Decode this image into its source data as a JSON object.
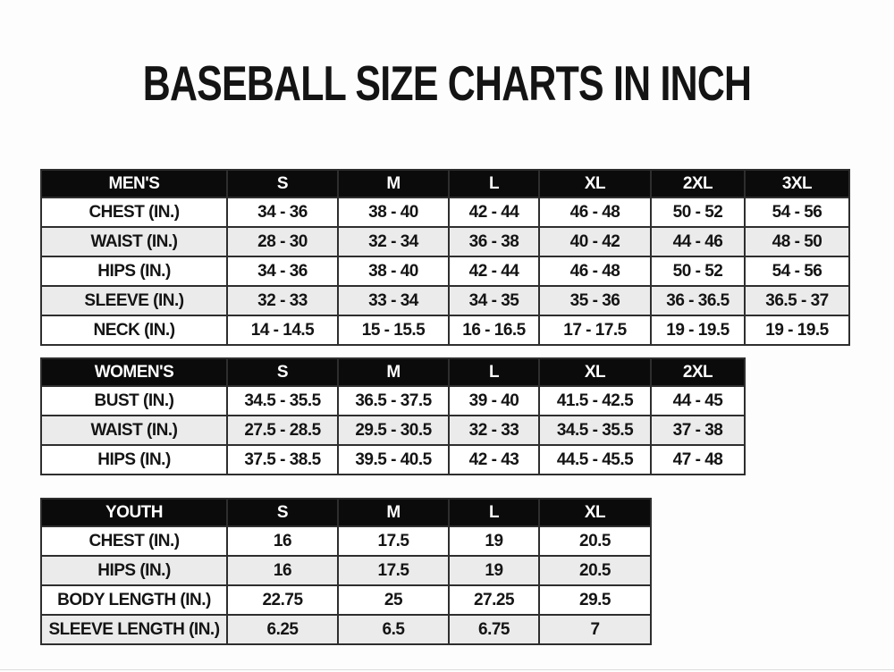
{
  "page": {
    "title": "BASEBALL SIZE CHARTS IN INCH"
  },
  "colors": {
    "page_bg": "#fdfdfd",
    "header_bg": "#0b0b0b",
    "header_text": "#ffffff",
    "row_alt": "#ebebeb",
    "border": "#2e2e2e",
    "text": "#141414"
  },
  "tables": [
    {
      "name": "mens",
      "header": [
        "MEN'S",
        "S",
        "M",
        "L",
        "XL",
        "2XL",
        "3XL"
      ],
      "rows": [
        {
          "label": "CHEST (IN.)",
          "values": [
            "34 - 36",
            "38 - 40",
            "42 - 44",
            "46 - 48",
            "50 - 52",
            "54 - 56"
          ]
        },
        {
          "label": "WAIST (IN.)",
          "values": [
            "28 - 30",
            "32 - 34",
            "36 - 38",
            "40 - 42",
            "44 - 46",
            "48 - 50"
          ]
        },
        {
          "label": "HIPS (IN.)",
          "values": [
            "34 - 36",
            "38 - 40",
            "42 - 44",
            "46 - 48",
            "50 - 52",
            "54 - 56"
          ]
        },
        {
          "label": "SLEEVE (IN.)",
          "values": [
            "32 - 33",
            "33 - 34",
            "34 - 35",
            "35 - 36",
            "36 - 36.5",
            "36.5 - 37"
          ]
        },
        {
          "label": "NECK (IN.)",
          "values": [
            "14 - 14.5",
            "15 - 15.5",
            "16 - 16.5",
            "17 - 17.5",
            "19 - 19.5",
            "19 - 19.5"
          ]
        }
      ]
    },
    {
      "name": "womens",
      "header": [
        "WOMEN'S",
        "S",
        "M",
        "L",
        "XL",
        "2XL"
      ],
      "rows": [
        {
          "label": "BUST (IN.)",
          "values": [
            "34.5 - 35.5",
            "36.5 - 37.5",
            "39 - 40",
            "41.5 - 42.5",
            "44 - 45"
          ]
        },
        {
          "label": "WAIST (IN.)",
          "values": [
            "27.5 - 28.5",
            "29.5 - 30.5",
            "32 - 33",
            "34.5 - 35.5",
            "37 - 38"
          ]
        },
        {
          "label": "HIPS (IN.)",
          "values": [
            "37.5 - 38.5",
            "39.5 - 40.5",
            "42 - 43",
            "44.5 - 45.5",
            "47 - 48"
          ]
        }
      ]
    },
    {
      "name": "youth",
      "header": [
        "YOUTH",
        "S",
        "M",
        "L",
        "XL"
      ],
      "rows": [
        {
          "label": "CHEST (IN.)",
          "values": [
            "16",
            "17.5",
            "19",
            "20.5"
          ]
        },
        {
          "label": "HIPS (IN.)",
          "values": [
            "16",
            "17.5",
            "19",
            "20.5"
          ]
        },
        {
          "label": "BODY LENGTH (IN.)",
          "values": [
            "22.75",
            "25",
            "27.25",
            "29.5"
          ]
        },
        {
          "label": "SLEEVE LENGTH (IN.)",
          "values": [
            "6.25",
            "6.5",
            "6.75",
            "7"
          ]
        }
      ]
    }
  ]
}
